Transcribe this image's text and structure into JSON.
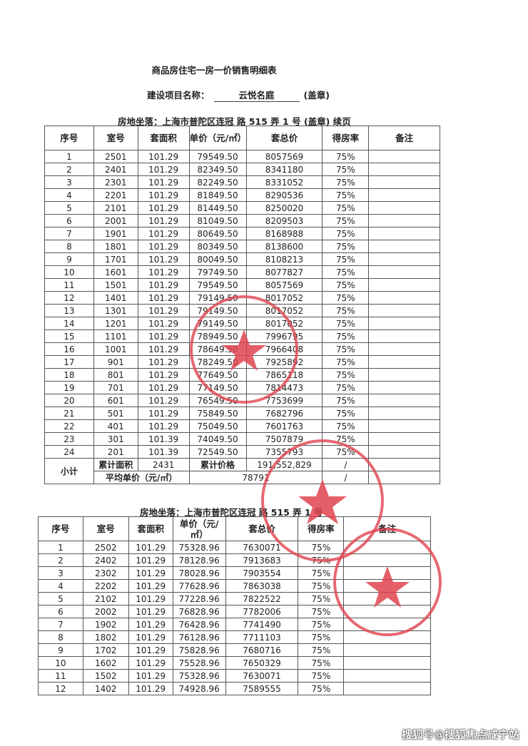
{
  "title": "商品房住宅一房一价销售明细表",
  "project": {
    "label": "建设项目名称：",
    "name": "云悦名庭",
    "seal": "(盖章)"
  },
  "columns": [
    "序号",
    "室号",
    "套面积",
    "单价（元/㎡）",
    "套总价",
    "得房率",
    "备注"
  ],
  "table1": {
    "location_label": "房地坐落：",
    "location": "上海市普陀区连冠 路 515 弄 1 号",
    "location_suffix": "(盖章)  续页",
    "rows": [
      [
        "1",
        "2501",
        "101.29",
        "79549.50",
        "8057569",
        "75%",
        ""
      ],
      [
        "2",
        "2401",
        "101.29",
        "82349.50",
        "8341180",
        "75%",
        ""
      ],
      [
        "3",
        "2301",
        "101.29",
        "82249.50",
        "8331052",
        "75%",
        ""
      ],
      [
        "4",
        "2201",
        "101.29",
        "81849.50",
        "8290536",
        "75%",
        ""
      ],
      [
        "5",
        "2101",
        "101.29",
        "81449.50",
        "8250020",
        "75%",
        ""
      ],
      [
        "6",
        "2001",
        "101.29",
        "81049.50",
        "8209503",
        "75%",
        ""
      ],
      [
        "7",
        "1901",
        "101.29",
        "80649.50",
        "8168988",
        "75%",
        ""
      ],
      [
        "8",
        "1801",
        "101.29",
        "80349.50",
        "8138600",
        "75%",
        ""
      ],
      [
        "9",
        "1701",
        "101.29",
        "80049.50",
        "8108213",
        "75%",
        ""
      ],
      [
        "10",
        "1601",
        "101.29",
        "79749.50",
        "8077827",
        "75%",
        ""
      ],
      [
        "11",
        "1501",
        "101.29",
        "79549.50",
        "8057569",
        "75%",
        ""
      ],
      [
        "12",
        "1401",
        "101.29",
        "79149.50",
        "8017052",
        "75%",
        ""
      ],
      [
        "13",
        "1301",
        "101.29",
        "79149.50",
        "8017052",
        "75%",
        ""
      ],
      [
        "14",
        "1201",
        "101.29",
        "79149.50",
        "8017052",
        "75%",
        ""
      ],
      [
        "15",
        "1101",
        "101.29",
        "78949.50",
        "7996795",
        "75%",
        ""
      ],
      [
        "16",
        "1001",
        "101.29",
        "78649.50",
        "7966408",
        "75%",
        ""
      ],
      [
        "17",
        "901",
        "101.29",
        "78249.50",
        "7925892",
        "75%",
        ""
      ],
      [
        "18",
        "801",
        "101.29",
        "77649.50",
        "7865118",
        "75%",
        ""
      ],
      [
        "19",
        "701",
        "101.29",
        "77149.50",
        "7814473",
        "75%",
        ""
      ],
      [
        "20",
        "601",
        "101.29",
        "76549.50",
        "7753699",
        "75%",
        ""
      ],
      [
        "21",
        "501",
        "101.29",
        "75849.50",
        "7682796",
        "75%",
        ""
      ],
      [
        "22",
        "401",
        "101.29",
        "75049.50",
        "7601763",
        "75%",
        ""
      ],
      [
        "23",
        "301",
        "101.39",
        "74049.50",
        "7507879",
        "75%",
        ""
      ],
      [
        "24",
        "201",
        "101.39",
        "72549.50",
        "7355793",
        "75%",
        ""
      ]
    ],
    "subtotal": {
      "label": "小计",
      "area_label": "累计面积",
      "area": "2431",
      "price_label": "累计价格",
      "price": "191,552,829",
      "price_rate": "/",
      "avg_label": "平均单价（元/㎡）",
      "avg": "78791",
      "avg_rate": "/"
    }
  },
  "table2": {
    "location_label": "房地坐落：",
    "location": "上海市普陀区连冠 路 515 弄 1 号",
    "rows": [
      [
        "1",
        "2502",
        "101.29",
        "75328.96",
        "7630071",
        "75%",
        ""
      ],
      [
        "2",
        "2402",
        "101.29",
        "78128.96",
        "7913683",
        "75%",
        ""
      ],
      [
        "3",
        "2302",
        "101.29",
        "78028.96",
        "7903554",
        "75%",
        ""
      ],
      [
        "4",
        "2202",
        "101.29",
        "77628.96",
        "7863038",
        "75%",
        ""
      ],
      [
        "5",
        "2102",
        "101.29",
        "77228.96",
        "7822522",
        "75%",
        ""
      ],
      [
        "6",
        "2002",
        "101.29",
        "76828.96",
        "7782006",
        "75%",
        ""
      ],
      [
        "7",
        "1902",
        "101.29",
        "76428.96",
        "7741490",
        "75%",
        ""
      ],
      [
        "8",
        "1802",
        "101.29",
        "76128.96",
        "7711103",
        "75%",
        ""
      ],
      [
        "9",
        "1702",
        "101.29",
        "75828.96",
        "7680716",
        "75%",
        ""
      ],
      [
        "10",
        "1602",
        "101.29",
        "75528.96",
        "7650329",
        "75%",
        ""
      ],
      [
        "11",
        "1502",
        "101.29",
        "75328.96",
        "7630071",
        "75%",
        ""
      ],
      [
        "12",
        "1402",
        "101.29",
        "74928.96",
        "7589555",
        "75%",
        ""
      ]
    ]
  },
  "stamp_color": "#e0434f",
  "watermark": "搜狐号@搜狐焦点咸宁站"
}
